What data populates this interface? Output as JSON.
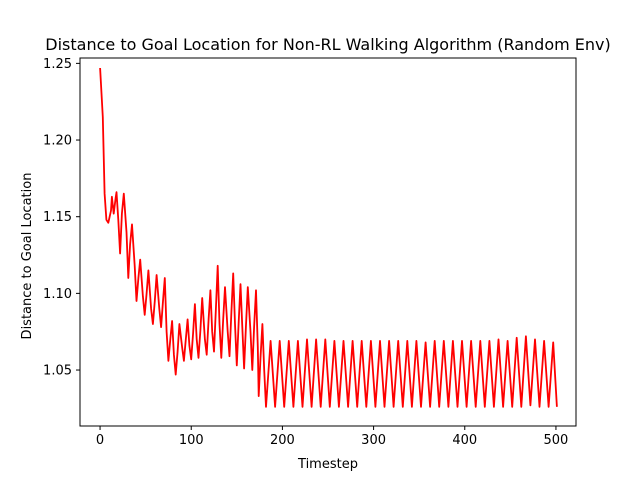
{
  "chart_data": {
    "type": "line",
    "title": "Distance to Goal Location for Non-RL Walking Algorithm (Random Env)",
    "xlabel": "Timestep",
    "ylabel": "Distance to Goal Location",
    "xlim": [
      -22,
      522
    ],
    "ylim": [
      1.0135,
      1.2535
    ],
    "xticks": [
      0,
      100,
      200,
      300,
      400,
      500
    ],
    "yticks": [
      1.05,
      1.1,
      1.15,
      1.2,
      1.25
    ],
    "ytick_labels": [
      "1.05",
      "1.10",
      "1.15",
      "1.20",
      "1.25"
    ],
    "grid": false,
    "color": "#ff0000",
    "series": [
      {
        "points": [
          [
            0,
            1.247
          ],
          [
            3,
            1.215
          ],
          [
            5,
            1.165
          ],
          [
            7,
            1.148
          ],
          [
            9,
            1.146
          ],
          [
            12,
            1.154
          ],
          [
            13,
            1.163
          ],
          [
            15,
            1.152
          ],
          [
            17,
            1.162
          ],
          [
            18,
            1.166
          ],
          [
            20,
            1.148
          ],
          [
            22,
            1.126
          ],
          [
            24,
            1.152
          ],
          [
            26,
            1.165
          ],
          [
            29,
            1.14
          ],
          [
            31,
            1.11
          ],
          [
            33,
            1.132
          ],
          [
            35,
            1.145
          ],
          [
            38,
            1.118
          ],
          [
            40,
            1.095
          ],
          [
            42,
            1.11
          ],
          [
            44,
            1.122
          ],
          [
            47,
            1.098
          ],
          [
            49,
            1.086
          ],
          [
            51,
            1.1
          ],
          [
            53,
            1.115
          ],
          [
            56,
            1.09
          ],
          [
            58,
            1.08
          ],
          [
            60,
            1.095
          ],
          [
            62,
            1.112
          ],
          [
            65,
            1.09
          ],
          [
            67,
            1.078
          ],
          [
            69,
            1.095
          ],
          [
            71,
            1.11
          ],
          [
            73,
            1.075
          ],
          [
            75,
            1.056
          ],
          [
            77,
            1.07
          ],
          [
            79,
            1.082
          ],
          [
            81,
            1.06
          ],
          [
            83,
            1.047
          ],
          [
            85,
            1.062
          ],
          [
            87,
            1.08
          ],
          [
            90,
            1.065
          ],
          [
            92,
            1.056
          ],
          [
            94,
            1.07
          ],
          [
            96,
            1.083
          ],
          [
            98,
            1.066
          ],
          [
            100,
            1.057
          ],
          [
            102,
            1.074
          ],
          [
            104,
            1.093
          ],
          [
            106,
            1.07
          ],
          [
            108,
            1.058
          ],
          [
            110,
            1.076
          ],
          [
            112,
            1.097
          ],
          [
            115,
            1.07
          ],
          [
            117,
            1.06
          ],
          [
            119,
            1.083
          ],
          [
            121,
            1.102
          ],
          [
            123,
            1.075
          ],
          [
            125,
            1.062
          ],
          [
            127,
            1.09
          ],
          [
            129,
            1.118
          ],
          [
            131,
            1.08
          ],
          [
            133,
            1.058
          ],
          [
            135,
            1.082
          ],
          [
            137,
            1.104
          ],
          [
            140,
            1.075
          ],
          [
            142,
            1.059
          ],
          [
            144,
            1.088
          ],
          [
            146,
            1.113
          ],
          [
            148,
            1.08
          ],
          [
            150,
            1.053
          ],
          [
            152,
            1.08
          ],
          [
            154,
            1.106
          ],
          [
            156,
            1.078
          ],
          [
            158,
            1.051
          ],
          [
            160,
            1.078
          ],
          [
            162,
            1.104
          ],
          [
            165,
            1.075
          ],
          [
            167,
            1.05
          ],
          [
            169,
            1.078
          ],
          [
            171,
            1.102
          ],
          [
            173,
            1.065
          ],
          [
            174,
            1.033
          ],
          [
            176,
            1.058
          ],
          [
            178,
            1.08
          ],
          [
            180,
            1.05
          ],
          [
            182,
            1.026
          ],
          [
            187,
            1.069
          ],
          [
            192,
            1.026
          ],
          [
            197,
            1.069
          ],
          [
            202,
            1.026
          ],
          [
            207,
            1.069
          ],
          [
            212,
            1.026
          ],
          [
            217,
            1.069
          ],
          [
            222,
            1.026
          ],
          [
            227,
            1.07
          ],
          [
            232,
            1.026
          ],
          [
            237,
            1.07
          ],
          [
            242,
            1.026
          ],
          [
            247,
            1.07
          ],
          [
            252,
            1.026
          ],
          [
            257,
            1.069
          ],
          [
            262,
            1.026
          ],
          [
            267,
            1.069
          ],
          [
            272,
            1.026
          ],
          [
            277,
            1.069
          ],
          [
            282,
            1.026
          ],
          [
            287,
            1.069
          ],
          [
            292,
            1.026
          ],
          [
            297,
            1.069
          ],
          [
            302,
            1.026
          ],
          [
            307,
            1.069
          ],
          [
            312,
            1.026
          ],
          [
            317,
            1.069
          ],
          [
            322,
            1.026
          ],
          [
            327,
            1.069
          ],
          [
            332,
            1.026
          ],
          [
            337,
            1.069
          ],
          [
            342,
            1.026
          ],
          [
            347,
            1.069
          ],
          [
            352,
            1.026
          ],
          [
            357,
            1.068
          ],
          [
            362,
            1.026
          ],
          [
            367,
            1.069
          ],
          [
            372,
            1.026
          ],
          [
            377,
            1.069
          ],
          [
            382,
            1.026
          ],
          [
            387,
            1.069
          ],
          [
            392,
            1.026
          ],
          [
            397,
            1.069
          ],
          [
            402,
            1.026
          ],
          [
            407,
            1.069
          ],
          [
            412,
            1.026
          ],
          [
            417,
            1.069
          ],
          [
            422,
            1.026
          ],
          [
            427,
            1.069
          ],
          [
            432,
            1.026
          ],
          [
            437,
            1.07
          ],
          [
            442,
            1.026
          ],
          [
            447,
            1.069
          ],
          [
            452,
            1.026
          ],
          [
            457,
            1.071
          ],
          [
            462,
            1.026
          ],
          [
            467,
            1.072
          ],
          [
            472,
            1.027
          ],
          [
            477,
            1.07
          ],
          [
            482,
            1.026
          ],
          [
            487,
            1.069
          ],
          [
            492,
            1.026
          ],
          [
            497,
            1.068
          ],
          [
            501,
            1.026
          ]
        ]
      }
    ]
  }
}
